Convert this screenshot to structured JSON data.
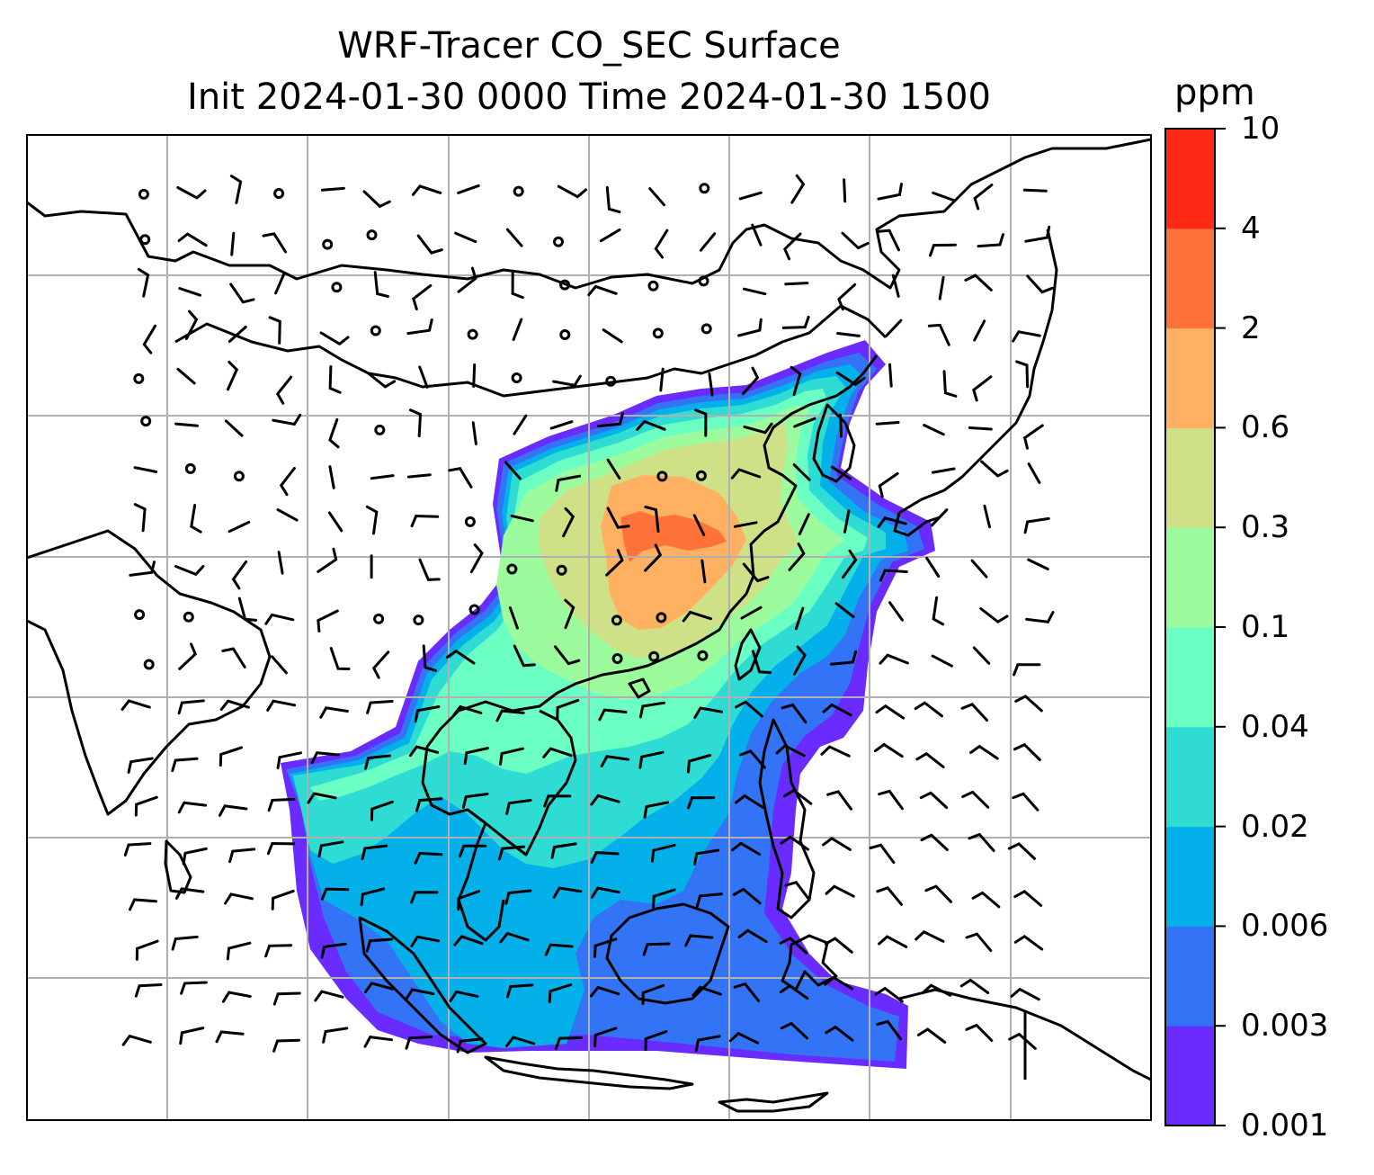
{
  "title": {
    "line1": "WRF-Tracer CO_SEC Surface",
    "line2": "Init 2024-01-30 0000 Time 2024-01-30 1500"
  },
  "colorbar": {
    "unit": "ppm",
    "levels": [
      "0.001",
      "0.003",
      "0.006",
      "0.02",
      "0.04",
      "0.1",
      "0.3",
      "0.6",
      "2",
      "4",
      "10"
    ],
    "colors": [
      "#6a2bff",
      "#3373f5",
      "#04b0ea",
      "#2fdcd3",
      "#6bffc4",
      "#9cfb9c",
      "#cfe187",
      "#ffb061",
      "#ff723a",
      "#ff2a15"
    ]
  },
  "map": {
    "projection": "lat-lon",
    "gridlines": true,
    "coastlines": true,
    "wind_barbs": true
  }
}
